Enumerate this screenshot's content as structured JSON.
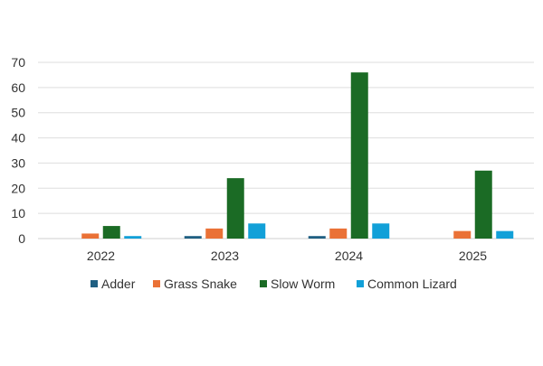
{
  "chart_data": {
    "type": "bar",
    "title": "",
    "xlabel": "",
    "ylabel": "",
    "categories": [
      "2022",
      "2023",
      "2024",
      "2025"
    ],
    "ylim": [
      0,
      70
    ],
    "yticks": [
      0,
      10,
      20,
      30,
      40,
      50,
      60,
      70
    ],
    "grid": true,
    "legend_position": "bottom",
    "series": [
      {
        "name": "Adder",
        "color": "#1f5f82",
        "values": [
          0,
          1,
          1,
          0
        ]
      },
      {
        "name": "Grass Snake",
        "color": "#ea7136",
        "values": [
          2,
          4,
          4,
          3
        ]
      },
      {
        "name": "Slow Worm",
        "color": "#1b6b25",
        "values": [
          5,
          24,
          66,
          27
        ]
      },
      {
        "name": "Common Lizard",
        "color": "#12a0d8",
        "values": [
          1,
          6,
          6,
          3
        ]
      }
    ]
  }
}
